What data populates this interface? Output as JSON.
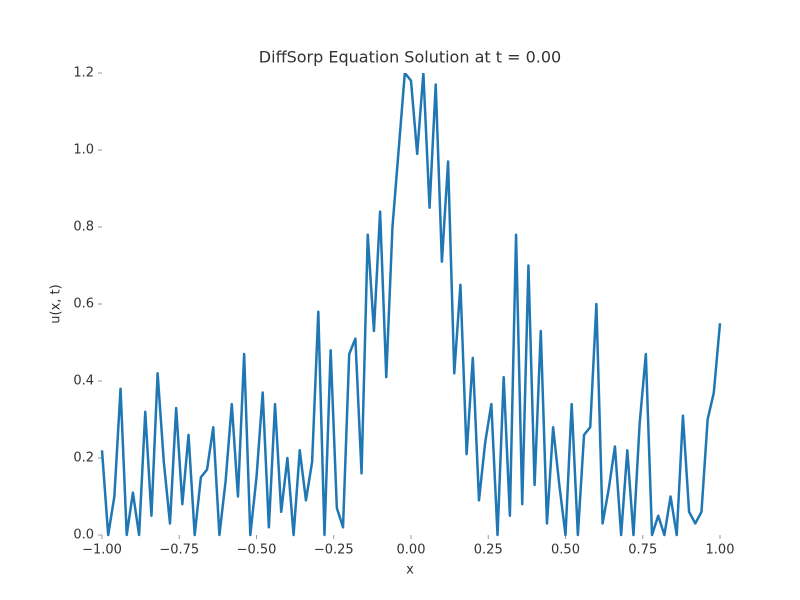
{
  "chart_data": {
    "type": "line",
    "title": "DiffSorp Equation Solution at t = 0.00",
    "x_label": "x",
    "y_label": "u(x, t)",
    "color": "#1f77b4",
    "grid": false,
    "xlim": [
      -1,
      1
    ],
    "ylim": [
      0,
      1.2
    ],
    "xticks": [
      {
        "value": -1,
        "label": "−1.00"
      },
      {
        "value": -0.75,
        "label": "−0.75"
      },
      {
        "value": -0.5,
        "label": "−0.50"
      },
      {
        "value": -0.25,
        "label": "−0.25"
      },
      {
        "value": 0,
        "label": "0.00"
      },
      {
        "value": 0.25,
        "label": "0.25"
      },
      {
        "value": 0.5,
        "label": "0.50"
      },
      {
        "value": 0.75,
        "label": "0.75"
      },
      {
        "value": 1,
        "label": "1.00"
      }
    ],
    "yticks": [
      {
        "value": 0,
        "label": "0.0"
      },
      0.2,
      0.4,
      0.6,
      0.8,
      {
        "value": 1,
        "label": "1.0"
      },
      1.2
    ],
    "x": [
      -1.0,
      -0.98,
      -0.96,
      -0.94,
      -0.92,
      -0.9,
      -0.88,
      -0.86,
      -0.84,
      -0.82,
      -0.8,
      -0.78,
      -0.76,
      -0.74,
      -0.72,
      -0.7,
      -0.68,
      -0.66,
      -0.64,
      -0.62,
      -0.6,
      -0.58,
      -0.56,
      -0.54,
      -0.52,
      -0.5,
      -0.48,
      -0.46,
      -0.44,
      -0.42,
      -0.4,
      -0.38,
      -0.36,
      -0.34,
      -0.32,
      -0.3,
      -0.28,
      -0.26,
      -0.24,
      -0.22,
      -0.2,
      -0.18,
      -0.16,
      -0.14,
      -0.12,
      -0.1,
      -0.08,
      -0.06,
      -0.04,
      -0.02,
      0.0,
      0.02,
      0.04,
      0.06,
      0.08,
      0.1,
      0.12,
      0.14,
      0.16,
      0.18,
      0.2,
      0.22,
      0.24,
      0.26,
      0.28,
      0.3,
      0.32,
      0.34,
      0.36,
      0.38,
      0.4,
      0.42,
      0.44,
      0.46,
      0.48,
      0.5,
      0.52,
      0.54,
      0.56,
      0.58,
      0.6,
      0.62,
      0.64,
      0.66,
      0.68,
      0.7,
      0.72,
      0.74,
      0.76,
      0.78,
      0.8,
      0.82,
      0.84,
      0.86,
      0.88,
      0.9,
      0.92,
      0.94,
      0.96,
      0.98,
      1.0
    ],
    "values": [
      0.22,
      0.0,
      0.1,
      0.38,
      0.0,
      0.11,
      0.0,
      0.32,
      0.05,
      0.42,
      0.19,
      0.03,
      0.33,
      0.08,
      0.26,
      0.0,
      0.15,
      0.17,
      0.28,
      0.0,
      0.14,
      0.34,
      0.1,
      0.47,
      0.0,
      0.15,
      0.37,
      0.02,
      0.34,
      0.06,
      0.2,
      0.0,
      0.22,
      0.09,
      0.19,
      0.58,
      0.0,
      0.48,
      0.07,
      0.02,
      0.47,
      0.51,
      0.16,
      0.78,
      0.53,
      0.84,
      0.41,
      0.8,
      1.0,
      1.2,
      1.18,
      0.99,
      1.2,
      0.85,
      1.17,
      0.71,
      0.97,
      0.42,
      0.65,
      0.21,
      0.46,
      0.09,
      0.24,
      0.34,
      0.0,
      0.41,
      0.05,
      0.78,
      0.08,
      0.7,
      0.13,
      0.53,
      0.03,
      0.28,
      0.13,
      0.0,
      0.34,
      0.0,
      0.26,
      0.28,
      0.6,
      0.03,
      0.12,
      0.23,
      0.0,
      0.22,
      0.0,
      0.29,
      0.47,
      0.0,
      0.05,
      0.0,
      0.1,
      0.0,
      0.31,
      0.06,
      0.03,
      0.06,
      0.3,
      0.37,
      0.55
    ]
  }
}
